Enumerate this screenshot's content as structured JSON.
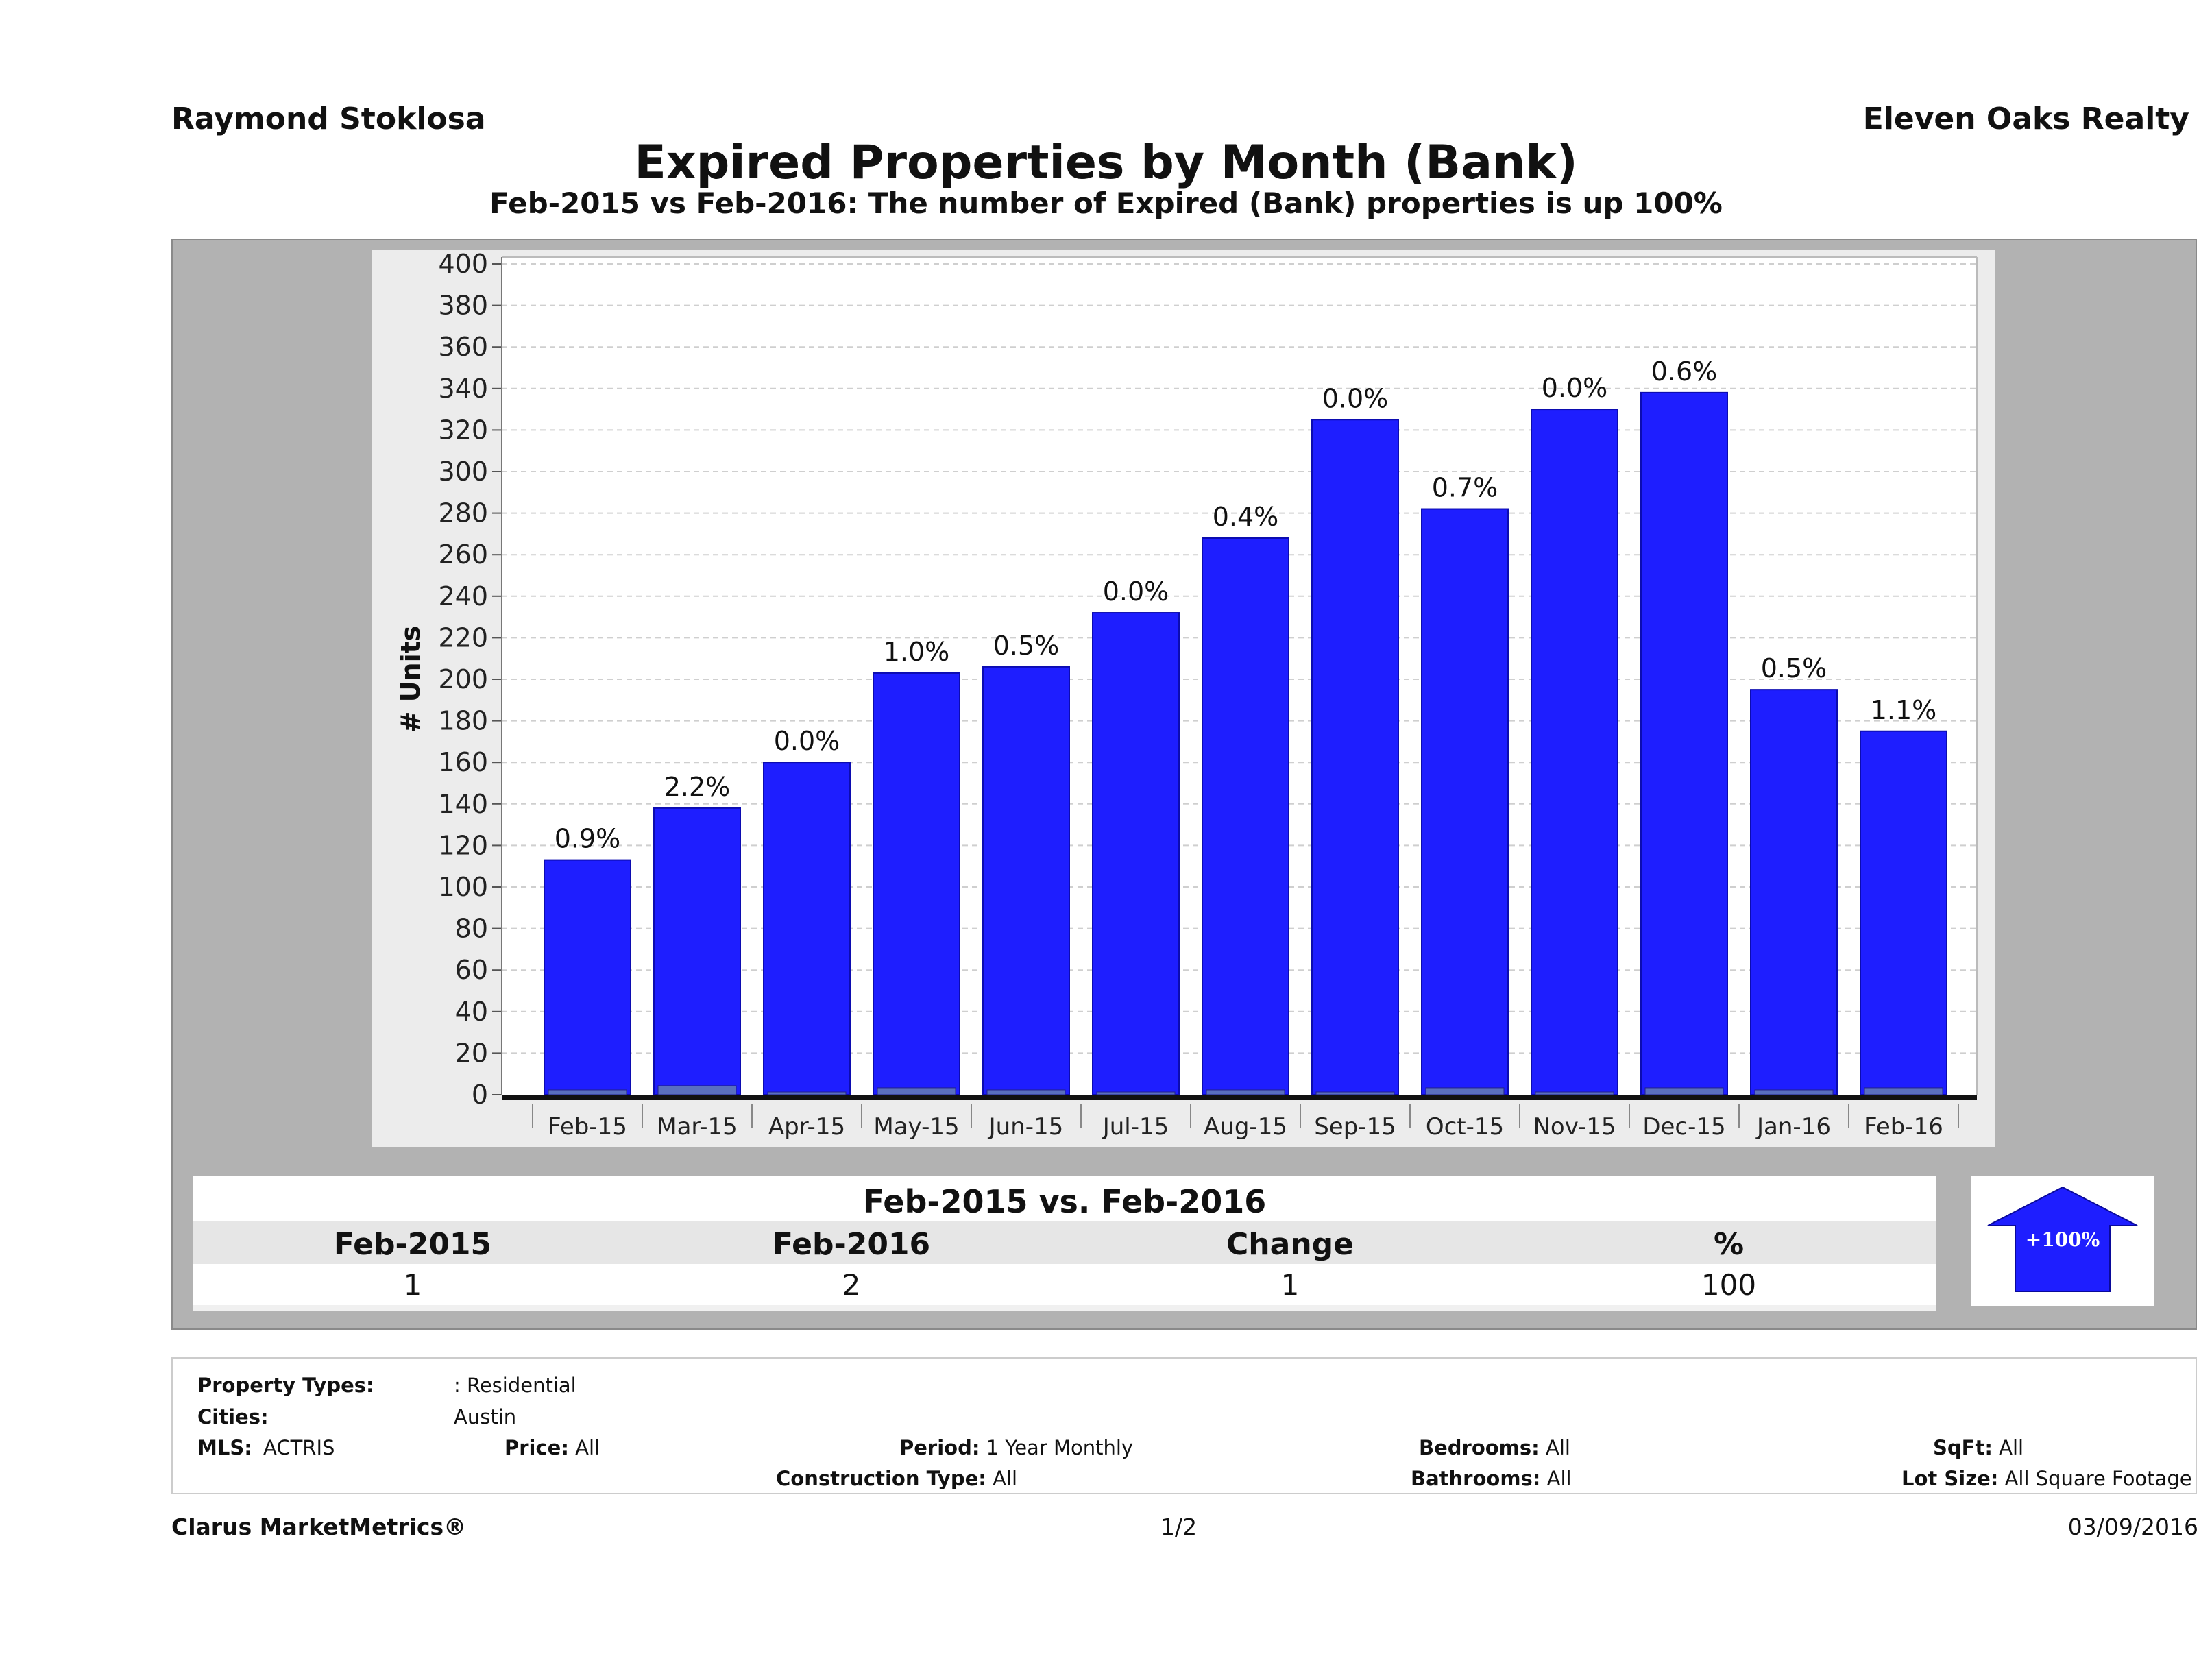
{
  "header": {
    "agent": "Raymond Stoklosa",
    "company": "Eleven Oaks Realty",
    "title": "Expired Properties by Month (Bank)",
    "subtitle": "Feb-2015 vs Feb-2016: The number of Expired (Bank)  properties is up 100%"
  },
  "chart_data": {
    "type": "bar",
    "ylabel": "# Units",
    "xlabel": "",
    "ylim": [
      0,
      400
    ],
    "ytick_step": 20,
    "grid": true,
    "categories": [
      "Feb-15",
      "Mar-15",
      "Apr-15",
      "May-15",
      "Jun-15",
      "Jul-15",
      "Aug-15",
      "Sep-15",
      "Oct-15",
      "Nov-15",
      "Dec-15",
      "Jan-16",
      "Feb-16"
    ],
    "values": [
      113,
      138,
      160,
      203,
      206,
      232,
      268,
      325,
      282,
      330,
      338,
      195,
      175
    ],
    "bank_values": [
      1,
      3,
      0,
      2,
      1,
      0,
      1,
      0,
      2,
      0,
      2,
      1,
      2
    ],
    "data_labels": [
      "0.9%",
      "2.2%",
      "0.0%",
      "1.0%",
      "0.5%",
      "0.0%",
      "0.4%",
      "0.0%",
      "0.7%",
      "0.0%",
      "0.6%",
      "0.5%",
      "1.1%"
    ],
    "bar_color": "#1e1eff"
  },
  "comparison": {
    "title": "Feb-2015 vs. Feb-2016",
    "headers": [
      "Feb-2015",
      "Feb-2016",
      "Change",
      "%"
    ],
    "values": [
      "1",
      "2",
      "1",
      "100"
    ],
    "badge": "+100%",
    "badge_color": "#1e1eff"
  },
  "criteria": {
    "property_types_label": "Property Types:",
    "property_types_value": ": Residential",
    "cities_label": "Cities:",
    "cities_value": "Austin",
    "mls_label": "MLS:",
    "mls_value": "ACTRIS",
    "price_label": "Price:",
    "price_value": "All",
    "period_label": "Period:",
    "period_value": "1 Year Monthly",
    "construction_label": "Construction Type:",
    "construction_value": "All",
    "bedrooms_label": "Bedrooms:",
    "bedrooms_value": "All",
    "bathrooms_label": "Bathrooms:",
    "bathrooms_value": "All",
    "sqft_label": "SqFt:",
    "sqft_value": "All",
    "lotsize_label": "Lot Size:",
    "lotsize_value": "All Square Footage"
  },
  "footer": {
    "brand": "Clarus MarketMetrics®",
    "page": "1/2",
    "date": "03/09/2016"
  }
}
